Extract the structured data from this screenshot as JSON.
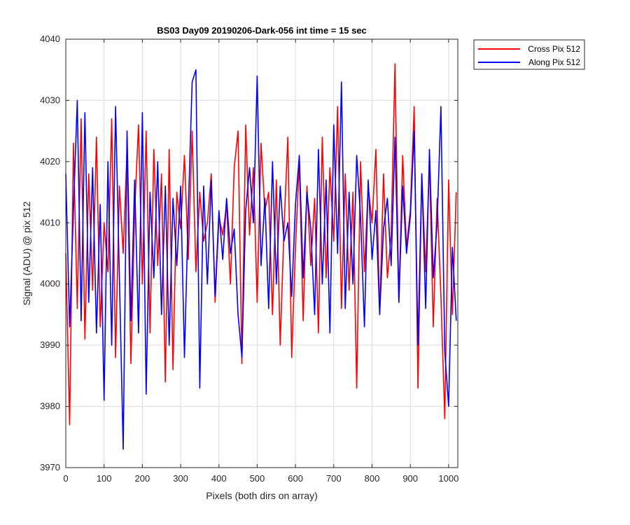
{
  "chart_data": {
    "type": "line",
    "title": "BS03 Day09 20190206-Dark-056 int time = 15 sec",
    "xlabel": "Pixels (both dirs on array)",
    "ylabel": "Signal (ADU) @ pix 512",
    "xlim": [
      0,
      1024
    ],
    "ylim": [
      3970,
      4040
    ],
    "xticks": [
      0,
      100,
      200,
      300,
      400,
      500,
      600,
      700,
      800,
      900,
      1000
    ],
    "yticks": [
      3970,
      3980,
      3990,
      4000,
      4010,
      4020,
      4030,
      4040
    ],
    "grid": true,
    "legend_location": "outside-top-right",
    "series": [
      {
        "name": "Cross Pix 512",
        "color": "#ff0000",
        "x": [
          0,
          10,
          20,
          30,
          40,
          50,
          60,
          70,
          80,
          90,
          100,
          110,
          120,
          130,
          140,
          150,
          160,
          170,
          180,
          190,
          200,
          210,
          220,
          230,
          240,
          250,
          260,
          270,
          280,
          290,
          300,
          310,
          320,
          330,
          340,
          350,
          360,
          370,
          380,
          390,
          400,
          410,
          420,
          430,
          440,
          450,
          460,
          470,
          480,
          490,
          500,
          510,
          520,
          530,
          540,
          550,
          560,
          570,
          580,
          590,
          600,
          610,
          620,
          630,
          640,
          650,
          660,
          670,
          680,
          690,
          700,
          710,
          720,
          730,
          740,
          750,
          760,
          770,
          780,
          790,
          800,
          810,
          820,
          830,
          840,
          850,
          860,
          870,
          880,
          890,
          900,
          910,
          920,
          930,
          940,
          950,
          960,
          970,
          980,
          990,
          1000,
          1010,
          1020
        ],
        "y": [
          4005,
          3977,
          4023,
          3996,
          4027,
          3991,
          4018,
          3999,
          4024,
          3993,
          4010,
          4002,
          4027,
          3988,
          4016,
          4005,
          4022,
          3987,
          4012,
          4026,
          4000,
          4025,
          3992,
          4022,
          4003,
          4018,
          3984,
          4022,
          3986,
          4015,
          4009,
          4021,
          4004,
          4025,
          4002,
          4015,
          4007,
          4010,
          4018,
          3997,
          4011,
          4008,
          4013,
          4000,
          4019,
          4025,
          3987,
          4026,
          4008,
          4019,
          3997,
          4023,
          4012,
          4015,
          3995,
          4017,
          3990,
          4009,
          4024,
          3988,
          4006,
          4020,
          3994,
          4016,
          4003,
          4014,
          3992,
          4024,
          4001,
          4019,
          4007,
          4029,
          3996,
          4018,
          3999,
          4015,
          3983,
          4020,
          4002,
          4016,
          4010,
          4022,
          3995,
          4018,
          4001,
          4008,
          4036,
          3997,
          4021,
          4006,
          4012,
          4029,
          3983,
          4018,
          4002,
          4020,
          3993,
          4014,
          3998,
          3978,
          4017,
          3995,
          4015
        ]
      },
      {
        "name": "Along Pix 512",
        "color": "#0000ff",
        "x": [
          0,
          10,
          20,
          30,
          40,
          50,
          60,
          70,
          80,
          90,
          100,
          110,
          120,
          130,
          140,
          150,
          160,
          170,
          180,
          190,
          200,
          210,
          220,
          230,
          240,
          250,
          260,
          270,
          280,
          290,
          300,
          310,
          320,
          330,
          340,
          350,
          360,
          370,
          380,
          390,
          400,
          410,
          420,
          430,
          440,
          450,
          460,
          470,
          480,
          490,
          500,
          510,
          520,
          530,
          540,
          550,
          560,
          570,
          580,
          590,
          600,
          610,
          620,
          630,
          640,
          650,
          660,
          670,
          680,
          690,
          700,
          710,
          720,
          730,
          740,
          750,
          760,
          770,
          780,
          790,
          800,
          810,
          820,
          830,
          840,
          850,
          860,
          870,
          880,
          890,
          900,
          910,
          920,
          930,
          940,
          950,
          960,
          970,
          980,
          990,
          1000,
          1010,
          1020
        ],
        "y": [
          4018,
          3993,
          4012,
          4030,
          3994,
          4028,
          3997,
          4019,
          3992,
          4013,
          3981,
          4020,
          3990,
          4029,
          4001,
          3973,
          4025,
          3994,
          4017,
          3992,
          4028,
          3982,
          4015,
          4001,
          4020,
          3995,
          4016,
          3990,
          4014,
          4003,
          4016,
          3988,
          4012,
          4033,
          4035,
          3983,
          4016,
          4000,
          4017,
          3998,
          4012,
          4004,
          4014,
          4005,
          4009,
          3995,
          3988,
          4012,
          4019,
          4010,
          4034,
          4003,
          4014,
          3996,
          4020,
          4000,
          4016,
          4007,
          4010,
          3998,
          4013,
          4021,
          4001,
          4015,
          4009,
          3995,
          4022,
          4000,
          4017,
          3992,
          4026,
          4005,
          4033,
          3996,
          4015,
          4000,
          4021,
          4011,
          3993,
          4017,
          4004,
          4012,
          3995,
          4009,
          4014,
          4003,
          4024,
          3997,
          4016,
          4005,
          4011,
          4025,
          3990,
          4018,
          3996,
          4022,
          4001,
          4010,
          4029,
          3989,
          3980,
          4006,
          3994
        ]
      }
    ]
  }
}
